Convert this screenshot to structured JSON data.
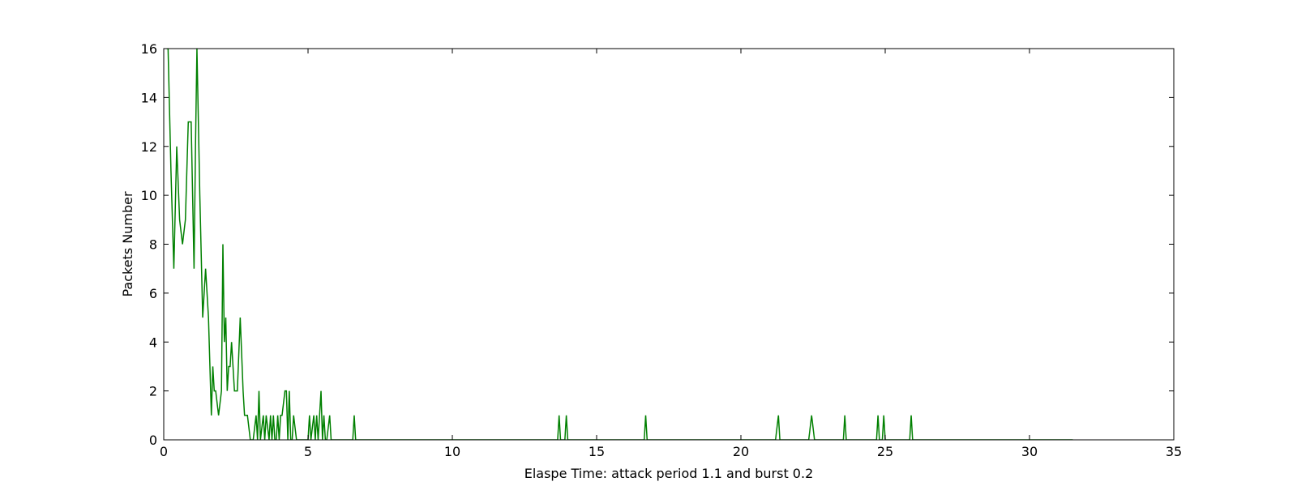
{
  "chart_data": {
    "type": "line",
    "xlabel": "Elaspe Time: attack period 1.1 and burst 0.2",
    "ylabel": "Packets Number",
    "xlim": [
      0,
      35
    ],
    "ylim": [
      0,
      16
    ],
    "xticks": [
      0,
      5,
      10,
      15,
      20,
      25,
      30,
      35
    ],
    "yticks": [
      0,
      2,
      4,
      6,
      8,
      10,
      12,
      14,
      16
    ],
    "grid": false,
    "series": [
      {
        "color": "#008000",
        "x": [
          0.1,
          0.15,
          0.25,
          0.35,
          0.45,
          0.55,
          0.65,
          0.75,
          0.85,
          0.95,
          1.05,
          1.1,
          1.15,
          1.2,
          1.25,
          1.35,
          1.45,
          1.55,
          1.65,
          1.7,
          1.75,
          1.8,
          1.9,
          2.0,
          2.05,
          2.1,
          2.15,
          2.2,
          2.25,
          2.3,
          2.35,
          2.45,
          2.5,
          2.55,
          2.65,
          2.75,
          2.8,
          2.85,
          2.9,
          3.0,
          3.05,
          3.1,
          3.2,
          3.25,
          3.3,
          3.35,
          3.45,
          3.5,
          3.55,
          3.65,
          3.7,
          3.75,
          3.8,
          3.85,
          3.9,
          3.95,
          4.0,
          4.05,
          4.1,
          4.2,
          4.25,
          4.3,
          4.35,
          4.4,
          4.45,
          4.5,
          4.6,
          4.7,
          5.0,
          5.05,
          5.1,
          5.2,
          5.25,
          5.3,
          5.35,
          5.45,
          5.5,
          5.55,
          5.6,
          5.65,
          5.75,
          5.8,
          6.55,
          6.6,
          6.65,
          13.65,
          13.7,
          13.75,
          13.9,
          13.95,
          14.0,
          16.65,
          16.7,
          16.75,
          21.2,
          21.3,
          21.35,
          22.35,
          22.45,
          22.55,
          23.55,
          23.6,
          23.65,
          24.7,
          24.75,
          24.8,
          24.9,
          24.95,
          25.0,
          25.85,
          25.9,
          25.95,
          31.5
        ],
        "values": [
          16,
          16,
          11,
          7,
          12,
          9,
          8,
          9,
          13,
          13,
          7,
          12,
          16,
          13,
          10,
          5,
          7,
          5,
          1,
          3,
          2,
          2,
          1,
          2,
          8,
          4,
          5,
          2,
          3,
          3,
          4,
          2,
          2,
          2,
          5,
          2,
          1,
          1,
          1,
          0,
          0,
          0,
          1,
          0,
          2,
          0,
          1,
          0,
          1,
          0,
          1,
          0,
          1,
          0,
          0,
          1,
          0,
          1,
          1,
          2,
          2,
          0,
          2,
          0,
          0,
          1,
          0,
          0,
          0,
          1,
          0,
          1,
          0,
          1,
          0,
          2,
          0,
          1,
          0,
          0,
          1,
          0,
          0,
          1,
          0,
          0,
          1,
          0,
          0,
          1,
          0,
          0,
          1,
          0,
          0,
          1,
          0,
          0,
          1,
          0,
          0,
          1,
          0,
          0,
          1,
          0,
          0,
          1,
          0,
          0,
          1,
          0,
          0
        ]
      }
    ]
  }
}
